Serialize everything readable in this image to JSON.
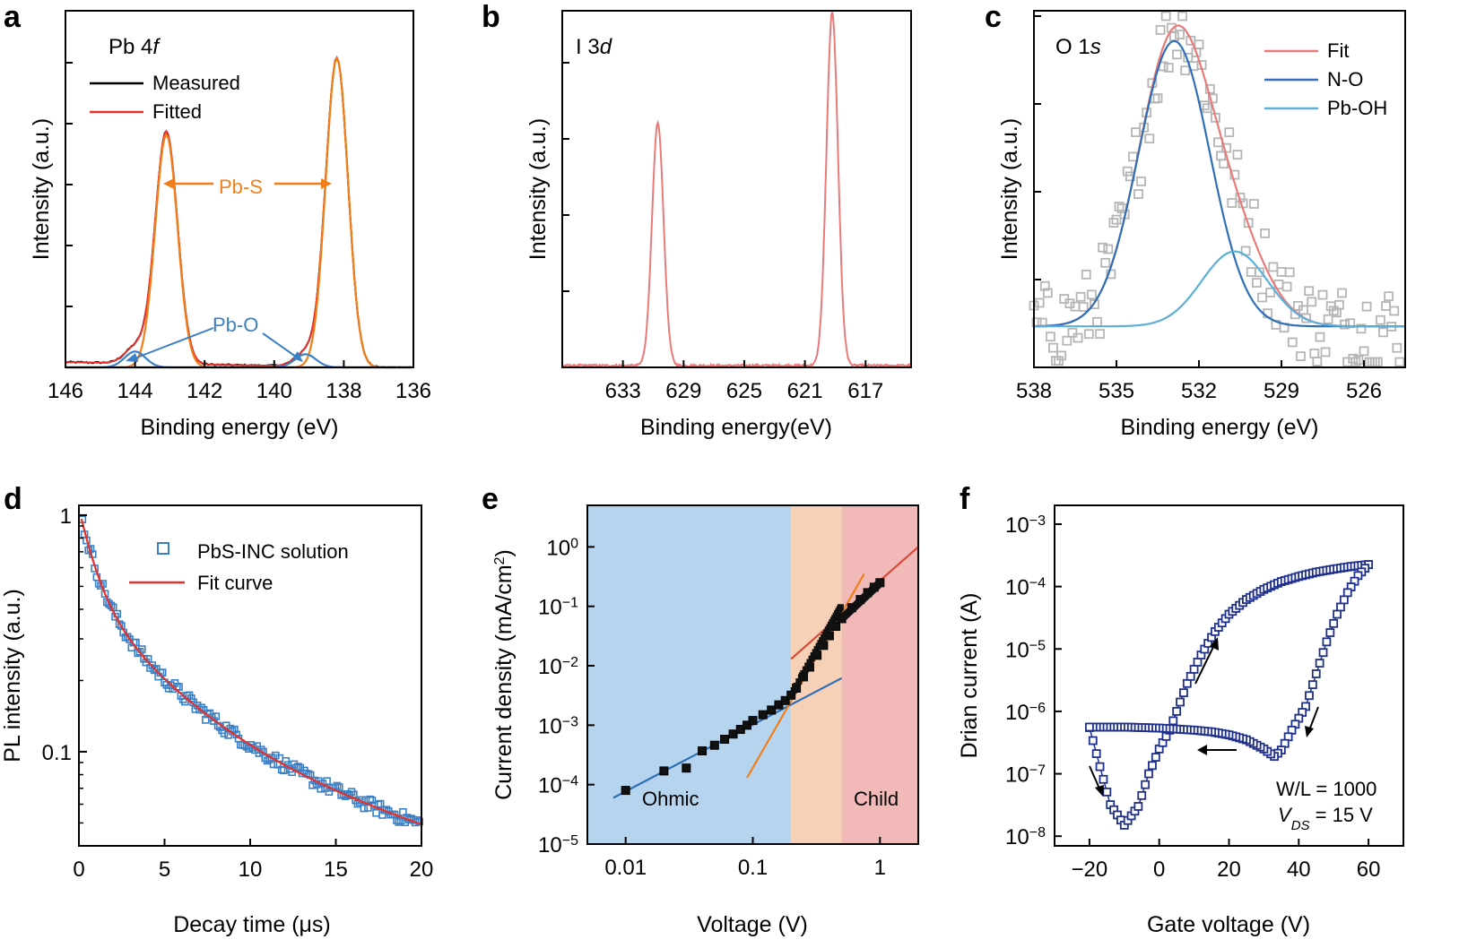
{
  "figure": {
    "panels": [
      "a",
      "b",
      "c",
      "d",
      "e",
      "f"
    ]
  },
  "chart_data": [
    {
      "id": "a",
      "type": "line",
      "letter": "a",
      "annotation_title": "Pb 4",
      "annotation_title_italic": "f",
      "xlabel": "Binding energy (eV)",
      "ylabel": "Intensity (a.u.)",
      "xlim": [
        146,
        136
      ],
      "ylim": [
        0,
        1.35
      ],
      "xticks": [
        146,
        144,
        142,
        140,
        138,
        136
      ],
      "legend": [
        "Measured",
        "Fitted"
      ],
      "legend_colors": [
        "#000000",
        "#e8302a"
      ],
      "annotations": [
        {
          "text": "Pb-S",
          "color": "#f07f19"
        },
        {
          "text": "Pb-O",
          "color": "#3b7fc4"
        }
      ],
      "peaks": [
        {
          "name": "Pb-S",
          "center": 143.1,
          "height": 0.88,
          "sigma": 0.32
        },
        {
          "name": "Pb-S",
          "center": 138.2,
          "height": 1.17,
          "sigma": 0.32
        },
        {
          "name": "Pb-O",
          "center": 144.0,
          "height": 0.06,
          "sigma": 0.3
        },
        {
          "name": "Pb-O",
          "center": 139.1,
          "height": 0.05,
          "sigma": 0.3
        }
      ]
    },
    {
      "id": "b",
      "type": "line",
      "letter": "b",
      "annotation_title": "I 3",
      "annotation_title_italic": "d",
      "xlabel": "Binding energy(eV)",
      "ylabel": "Intensity (a.u.)",
      "xlim": [
        637,
        614
      ],
      "ylim": [
        0,
        1.0
      ],
      "xticks": [
        633,
        629,
        625,
        621,
        617
      ],
      "color": "#e87a7a",
      "peaks": [
        {
          "center": 630.7,
          "height": 0.68,
          "sigma": 0.38
        },
        {
          "center": 619.2,
          "height": 0.99,
          "sigma": 0.38
        }
      ]
    },
    {
      "id": "c",
      "type": "scatter",
      "letter": "c",
      "annotation_title": "O 1",
      "annotation_title_italic": "s",
      "xlabel": "Binding energy (eV)",
      "ylabel": "Intensity (a.u.)",
      "xlim": [
        538,
        524.5
      ],
      "ylim": [
        0,
        1.0
      ],
      "xticks": [
        538,
        535,
        532,
        529,
        526
      ],
      "legend": [
        "Fit",
        "N-O",
        "Pb-OH"
      ],
      "legend_colors": [
        "#e87a7a",
        "#2e6fb7",
        "#5ab0d8"
      ],
      "baseline": 0.115,
      "components": [
        {
          "name": "N-O",
          "center": 532.9,
          "height": 0.8,
          "sigma": 1.3
        },
        {
          "name": "Pb-OH",
          "center": 530.7,
          "height": 0.21,
          "sigma": 1.2
        }
      ]
    },
    {
      "id": "d",
      "type": "scatter",
      "letter": "d",
      "xlabel": "Decay time (μs)",
      "ylabel": "PL intensity (a.u.)",
      "xlim": [
        0,
        20
      ],
      "ylim_log": [
        0.04,
        1.1
      ],
      "xticks": [
        0,
        5,
        10,
        15,
        20
      ],
      "yticks": [
        {
          "v": 1,
          "label": "1"
        },
        {
          "v": 0.1,
          "label": "0.1"
        }
      ],
      "legend": [
        "PbS-INC solution",
        "Fit curve"
      ],
      "legend_colors": [
        "#3b7fc4",
        "#e8302a"
      ],
      "fit": {
        "a1": 0.6,
        "t1": 0.9,
        "a2": 0.35,
        "t2": 4.2,
        "a3": 0.12,
        "t3": 21
      }
    },
    {
      "id": "e",
      "type": "scatter",
      "letter": "e",
      "xlabel": "Voltage (V)",
      "ylabel": "Current density (mA/cm",
      "ylabel_sup": "2",
      "ylabel_end": ")",
      "xlim_log": [
        0.005,
        2
      ],
      "ylim_log": [
        1e-05,
        5
      ],
      "xticks": [
        {
          "v": 0.01,
          "label": "0.01"
        },
        {
          "v": 0.1,
          "label": "0.1"
        },
        {
          "v": 1,
          "label": "1"
        }
      ],
      "yticks": [
        {
          "v": 1e-05,
          "base": "10",
          "exp": "−5"
        },
        {
          "v": 0.0001,
          "base": "10",
          "exp": "−4"
        },
        {
          "v": 0.001,
          "base": "10",
          "exp": "−3"
        },
        {
          "v": 0.01,
          "base": "10",
          "exp": "−2"
        },
        {
          "v": 0.1,
          "base": "10",
          "exp": "−1"
        },
        {
          "v": 1,
          "base": "10",
          "exp": "0"
        }
      ],
      "regions": [
        {
          "name": "Ohmic",
          "from": 0.005,
          "to": 0.2,
          "color": "#b7d4ee"
        },
        {
          "name": "",
          "from": 0.2,
          "to": 0.5,
          "color": "#f7d1b7"
        },
        {
          "name": "Child",
          "from": 0.5,
          "to": 2,
          "color": "#f2b9b9"
        }
      ],
      "points": [
        [
          0.01,
          8e-05
        ],
        [
          0.02,
          0.00017
        ],
        [
          0.03,
          0.00019
        ],
        [
          0.04,
          0.00037
        ],
        [
          0.05,
          0.00046
        ],
        [
          0.06,
          0.00058
        ],
        [
          0.07,
          0.00071
        ],
        [
          0.08,
          0.00085
        ],
        [
          0.09,
          0.001
        ],
        [
          0.1,
          0.0012
        ],
        [
          0.12,
          0.0015
        ],
        [
          0.14,
          0.0018
        ],
        [
          0.16,
          0.0022
        ],
        [
          0.18,
          0.0026
        ],
        [
          0.2,
          0.0032
        ],
        [
          0.22,
          0.0042
        ],
        [
          0.25,
          0.0065
        ],
        [
          0.28,
          0.0095
        ],
        [
          0.32,
          0.015
        ],
        [
          0.36,
          0.022
        ],
        [
          0.4,
          0.032
        ],
        [
          0.45,
          0.046
        ],
        [
          0.5,
          0.062
        ],
        [
          0.6,
          0.095
        ],
        [
          0.7,
          0.13
        ],
        [
          0.8,
          0.17
        ],
        [
          0.9,
          0.21
        ],
        [
          1.0,
          0.25
        ]
      ],
      "fits": [
        {
          "name": "ohmic",
          "x": [
            0.008,
            0.5
          ],
          "y": [
            6e-05,
            0.0062
          ],
          "color": "#2e6fb7"
        },
        {
          "name": "trap",
          "x": [
            0.09,
            0.75
          ],
          "y": [
            0.00013,
            0.35
          ],
          "color": "#f07f19"
        },
        {
          "name": "child",
          "x": [
            0.2,
            2
          ],
          "y": [
            0.013,
            1.0
          ],
          "color": "#d64a3a"
        }
      ]
    },
    {
      "id": "f",
      "type": "scatter",
      "letter": "f",
      "xlabel": "Gate voltage (V)",
      "ylabel": "Drian current (A)",
      "xlim": [
        -30,
        70
      ],
      "ylim_log": [
        7e-09,
        0.002
      ],
      "xticks": [
        {
          "v": -20,
          "label": "−20"
        },
        {
          "v": 0,
          "label": "0"
        },
        {
          "v": 20,
          "label": "20"
        },
        {
          "v": 40,
          "label": "40"
        },
        {
          "v": 60,
          "label": "60"
        }
      ],
      "yticks": [
        {
          "v": 1e-08,
          "base": "10",
          "exp": "−8"
        },
        {
          "v": 1e-07,
          "base": "10",
          "exp": "−7"
        },
        {
          "v": 1e-06,
          "base": "10",
          "exp": "−6"
        },
        {
          "v": 1e-05,
          "base": "10",
          "exp": "−5"
        },
        {
          "v": 0.0001,
          "base": "10",
          "exp": "−4"
        },
        {
          "v": 0.001,
          "base": "10",
          "exp": "−3"
        }
      ],
      "color": "#1f2f8c",
      "annotation_wl": "W/L = 1000",
      "annotation_vds_v": "V",
      "annotation_vds_sub": "DS",
      "annotation_vds_rest": " = 15 V",
      "forward_sweep": [
        [
          -20,
          5.5e-07
        ],
        [
          -17,
          1.3e-07
        ],
        [
          -14,
          3.2e-08
        ],
        [
          -10,
          1.5e-08
        ],
        [
          -6,
          3e-08
        ],
        [
          -3,
          1e-07
        ],
        [
          0,
          2.5e-07
        ],
        [
          3,
          5e-07
        ],
        [
          5,
          1e-06
        ],
        [
          8,
          2.8e-06
        ],
        [
          12,
          8e-06
        ],
        [
          16,
          1.9e-05
        ],
        [
          20,
          3.6e-05
        ],
        [
          25,
          6.2e-05
        ],
        [
          30,
          9e-05
        ],
        [
          35,
          0.00012
        ],
        [
          40,
          0.000145
        ],
        [
          45,
          0.00017
        ],
        [
          50,
          0.00019
        ],
        [
          55,
          0.00021
        ],
        [
          60,
          0.000225
        ]
      ],
      "reverse_sweep": [
        [
          60,
          0.000225
        ],
        [
          57,
          0.00015
        ],
        [
          54,
          8e-05
        ],
        [
          51,
          3.6e-05
        ],
        [
          48,
          1.3e-05
        ],
        [
          45,
          4e-06
        ],
        [
          42,
          1.2e-06
        ],
        [
          38,
          5e-07
        ],
        [
          35,
          2.4e-07
        ],
        [
          33,
          1.9e-07
        ],
        [
          30,
          2.5e-07
        ],
        [
          25,
          3.5e-07
        ],
        [
          20,
          4.2e-07
        ],
        [
          15,
          4.7e-07
        ],
        [
          10,
          5e-07
        ],
        [
          5,
          5.2e-07
        ],
        [
          0,
          5.4e-07
        ],
        [
          -5,
          5.5e-07
        ],
        [
          -10,
          5.6e-07
        ],
        [
          -15,
          5.6e-07
        ],
        [
          -20,
          5.6e-07
        ]
      ]
    }
  ]
}
